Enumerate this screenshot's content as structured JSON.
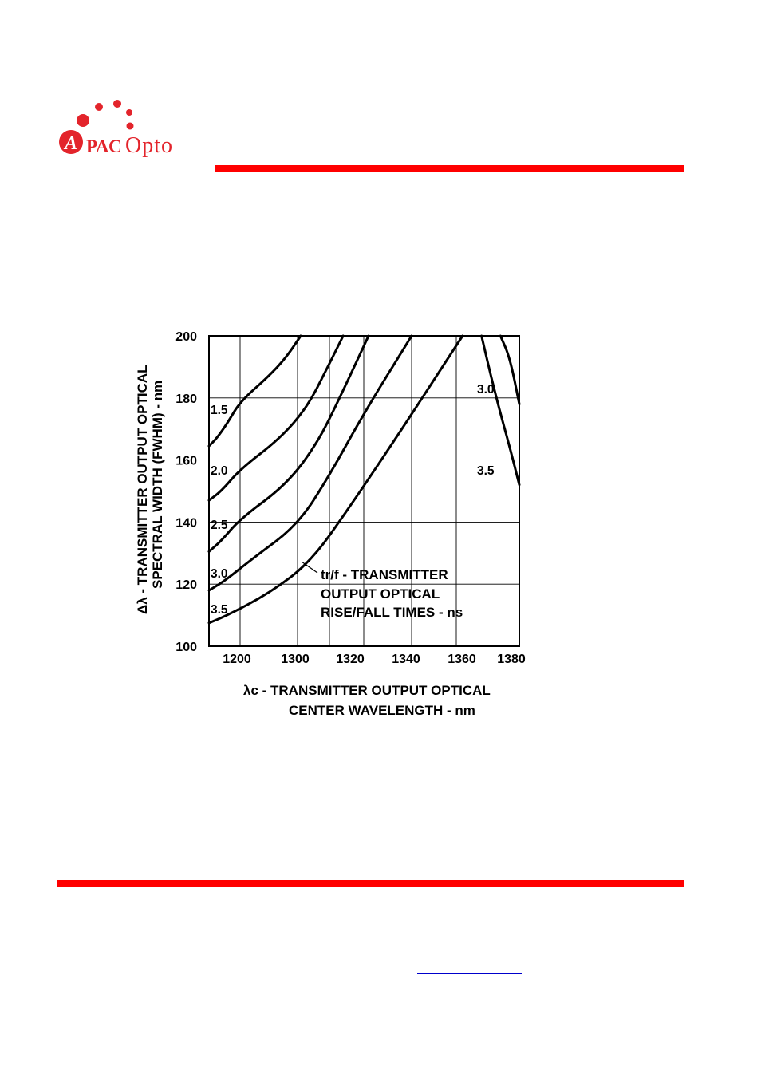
{
  "logo": {
    "brand_mark": "A",
    "brand_pac": "PAC",
    "brand_opto": "Opto",
    "color": "#e3242b"
  },
  "accent_color": "#ff0000",
  "chart_data": {
    "type": "line",
    "ylabel_line1": "Δλ - TRANSMITTER OUTPUT OPTICAL",
    "ylabel_line2": "SPECTRAL WIDTH (FWHM) - nm",
    "xlabel_line1": "λc - TRANSMITTER OUTPUT OPTICAL",
    "xlabel_line2": "CENTER WAVELENGTH - nm",
    "x_ticks": [
      "1200",
      "1300",
      "1320",
      "1340",
      "1360",
      "1380"
    ],
    "y_ticks": [
      "200",
      "180",
      "160",
      "140",
      "120",
      "100"
    ],
    "ylim": [
      100,
      200
    ],
    "x_tick_count": 6,
    "grid": true,
    "annotation": [
      "tr/f - TRANSMITTER",
      "OUTPUT OPTICAL",
      "RISE/FALL TIMES - ns"
    ],
    "series": [
      {
        "label": "1.5",
        "side": "left",
        "points": [
          [
            0,
            164.5
          ],
          [
            0.25,
            167
          ],
          [
            0.6,
            172
          ],
          [
            1.0,
            178.8
          ],
          [
            1.5,
            187
          ],
          [
            1.8,
            193
          ],
          [
            2.1,
            200
          ]
        ]
      },
      {
        "label": "2.0",
        "side": "left",
        "points": [
          [
            0,
            147
          ],
          [
            0.4,
            150
          ],
          [
            1.0,
            157
          ],
          [
            1.7,
            167
          ],
          [
            2.3,
            177
          ],
          [
            2.9,
            189
          ],
          [
            3.4,
            200
          ]
        ]
      },
      {
        "label": "2.5",
        "side": "left",
        "points": [
          [
            0,
            130.5
          ],
          [
            0.4,
            134
          ],
          [
            1.0,
            141
          ],
          [
            1.8,
            152
          ],
          [
            2.6,
            165
          ],
          [
            3.3,
            180
          ],
          [
            4.1,
            200
          ]
        ]
      },
      {
        "label": "3.0",
        "side": "left",
        "points": [
          [
            0,
            118
          ],
          [
            0.5,
            121
          ],
          [
            1.2,
            128
          ],
          [
            2.0,
            139
          ],
          [
            3.0,
            155
          ],
          [
            4.0,
            175
          ],
          [
            5.0,
            200
          ]
        ]
      },
      {
        "label": "3.5",
        "side": "left",
        "points": [
          [
            0,
            107.5
          ],
          [
            0.6,
            110
          ],
          [
            1.5,
            117
          ],
          [
            2.4,
            127
          ],
          [
            3.6,
            145
          ],
          [
            4.8,
            170
          ],
          [
            6.4,
            200
          ]
        ]
      },
      {
        "label": "3.0",
        "side": "right",
        "points": [
          [
            8.8,
            200
          ],
          [
            9.4,
            193
          ],
          [
            10.0,
            178
          ]
        ]
      },
      {
        "label": "3.5",
        "side": "right",
        "points": [
          [
            7.6,
            200
          ],
          [
            8.2,
            187
          ],
          [
            8.8,
            175
          ],
          [
            9.4,
            164
          ],
          [
            10.0,
            152
          ]
        ]
      }
    ]
  }
}
